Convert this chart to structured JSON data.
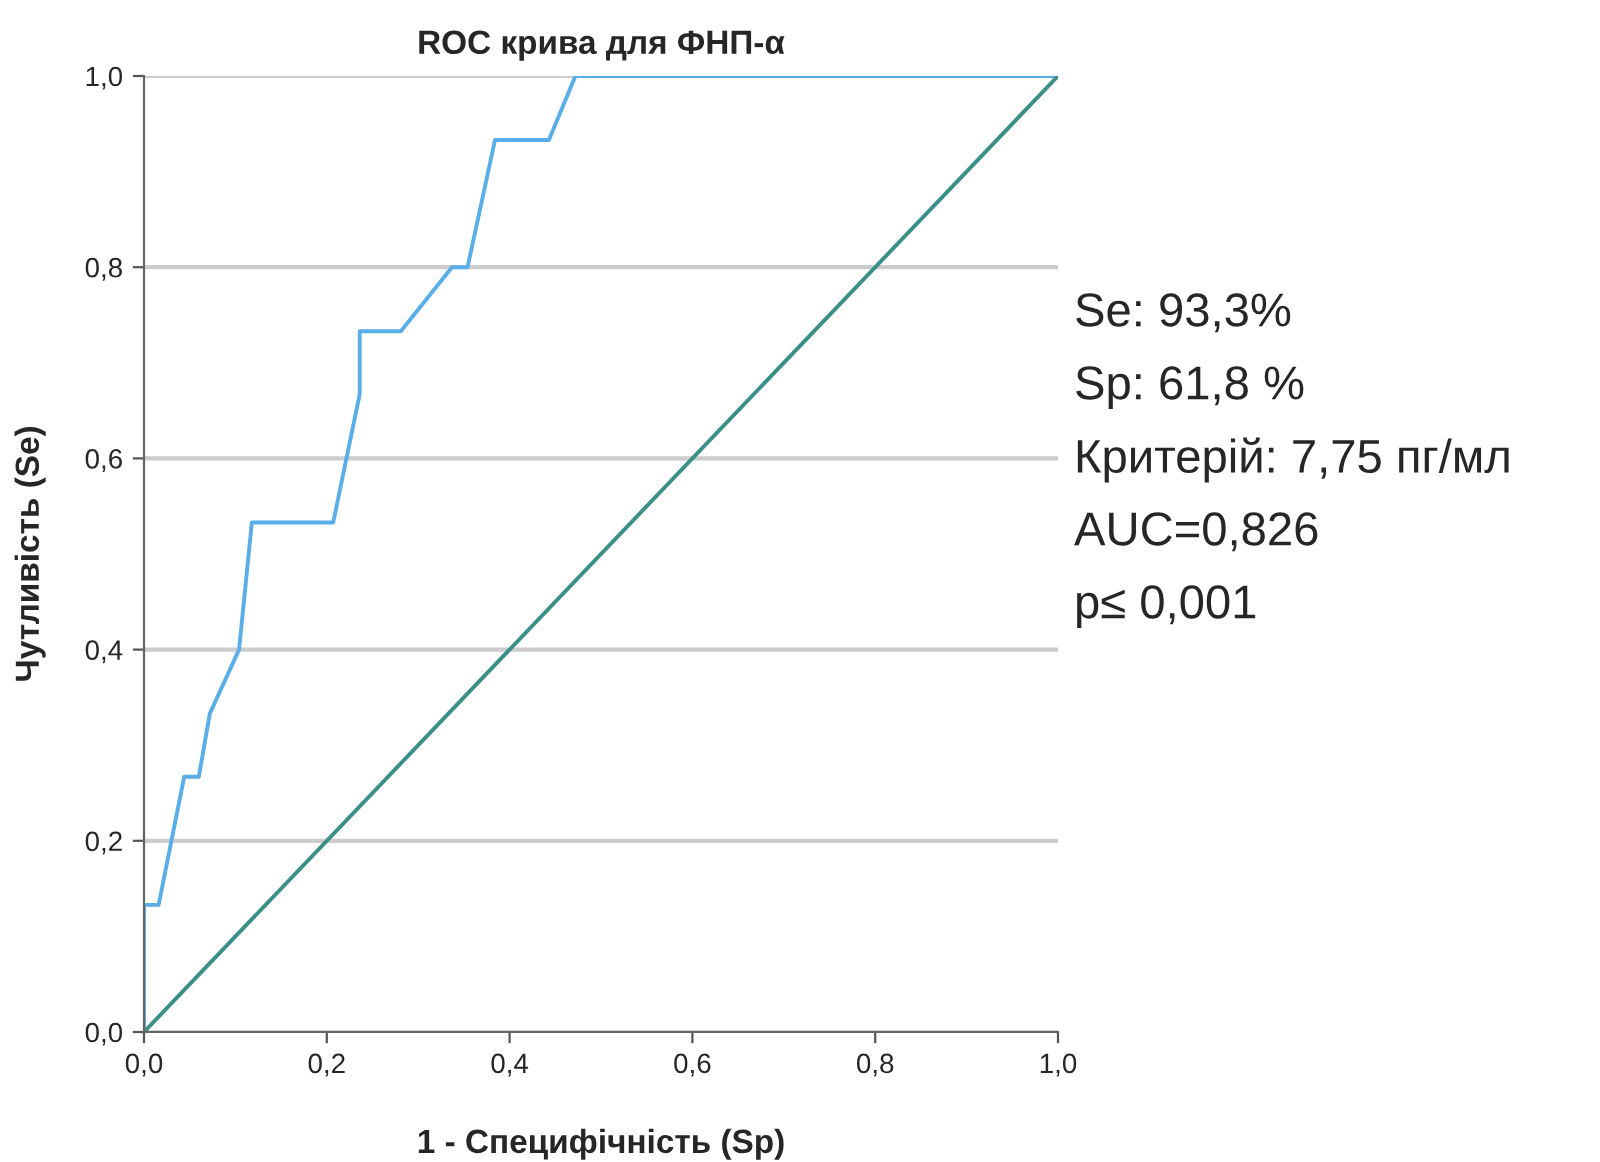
{
  "chart_data": {
    "type": "line",
    "title": "ROC крива для ФНП-α",
    "xlabel": "1 - Специфічність (Sp)",
    "ylabel": "Чутливість (Se)",
    "series": [
      {
        "color": "#5aaee8",
        "x": [
          0,
          0,
          0.016,
          0.044,
          0.06,
          0.072,
          0.104,
          0.118,
          0.207,
          0.236,
          0.236,
          0.281,
          0.337,
          0.354,
          0.384,
          0.443,
          0.472,
          1
        ],
        "values": [
          0,
          0.133,
          0.133,
          0.267,
          0.267,
          0.333,
          0.4,
          0.533,
          0.533,
          0.667,
          0.733,
          0.733,
          0.8,
          0.8,
          0.933,
          0.933,
          1,
          1
        ]
      },
      {
        "color": "#3a8f87",
        "x": [
          0,
          1
        ],
        "values": [
          0,
          1
        ]
      }
    ],
    "xlim": [
      0,
      1
    ],
    "ylim": [
      0,
      1
    ],
    "xticks": [
      {
        "value": 0,
        "label": "0,0"
      },
      {
        "value": 0.2,
        "label": "0,2"
      },
      {
        "value": 0.4,
        "label": "0,4"
      },
      {
        "value": 0.6,
        "label": "0,6"
      },
      {
        "value": 0.8,
        "label": "0,8"
      },
      {
        "value": 1,
        "label": "1,0"
      }
    ],
    "yticks": [
      {
        "value": 0,
        "label": "0,0"
      },
      {
        "value": 0.2,
        "label": "0,2"
      },
      {
        "value": 0.4,
        "label": "0,4"
      },
      {
        "value": 0.6,
        "label": "0,6"
      },
      {
        "value": 0.8,
        "label": "0,8"
      },
      {
        "value": 1,
        "label": "1,0"
      }
    ],
    "grid": "y",
    "annotations": [
      "Se: 93,3%",
      "Sp: 61,8 %",
      "Критерій: 7,75 пг/мл",
      "AUC=0,826",
      "p≤ 0,001"
    ]
  }
}
